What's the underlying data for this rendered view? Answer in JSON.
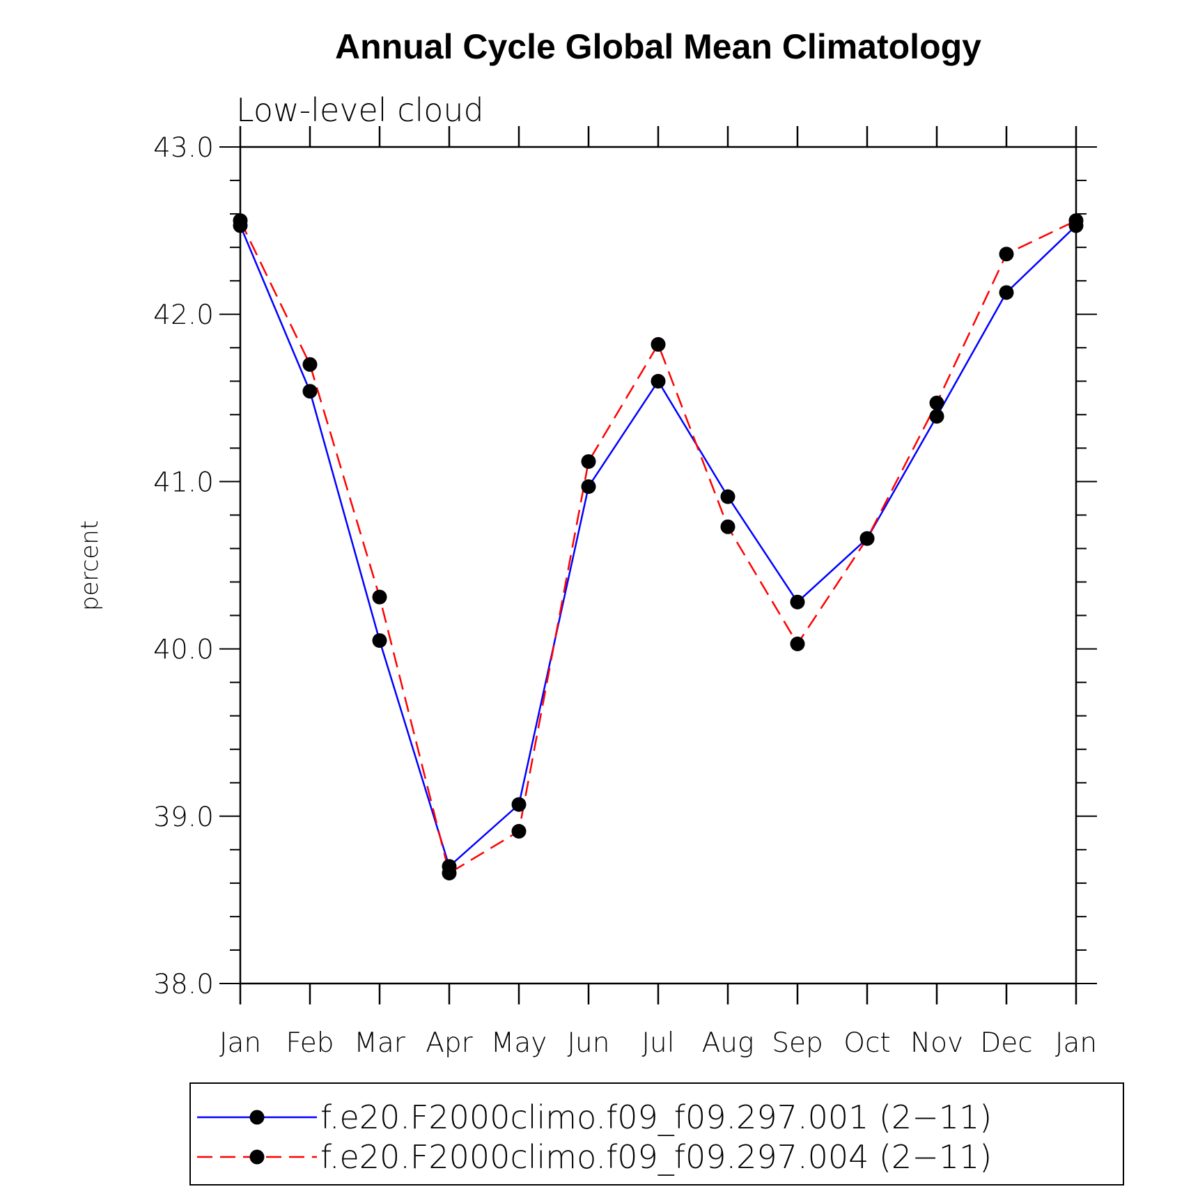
{
  "chart_data": {
    "type": "line",
    "title": "Annual Cycle Global Mean Climatology",
    "subtitle": "Low-level cloud",
    "ylabel": "percent",
    "xlabel": "",
    "categories": [
      "Jan",
      "Feb",
      "Mar",
      "Apr",
      "May",
      "Jun",
      "Jul",
      "Aug",
      "Sep",
      "Oct",
      "Nov",
      "Dec",
      "Jan"
    ],
    "ylim": [
      38.0,
      43.0
    ],
    "yticks": [
      "38.0",
      "39.0",
      "40.0",
      "41.0",
      "42.0",
      "43.0"
    ],
    "grid": false,
    "legend_position": "bottom",
    "series": [
      {
        "name": "f.e20.F2000climo.f09_f09.297.001 (2−11)",
        "color": "#0000ff",
        "dash": "solid",
        "marker": "filled-circle",
        "values": [
          42.53,
          41.54,
          40.05,
          38.7,
          39.07,
          40.97,
          41.6,
          40.91,
          40.28,
          40.66,
          41.39,
          42.13,
          42.53
        ]
      },
      {
        "name": "f.e20.F2000climo.f09_f09.297.004 (2−11)",
        "color": "#ff0000",
        "dash": "dashed",
        "marker": "filled-circle",
        "values": [
          42.56,
          41.7,
          40.31,
          38.66,
          38.91,
          41.12,
          41.82,
          40.73,
          40.03,
          40.66,
          41.47,
          42.36,
          42.56
        ]
      }
    ]
  }
}
